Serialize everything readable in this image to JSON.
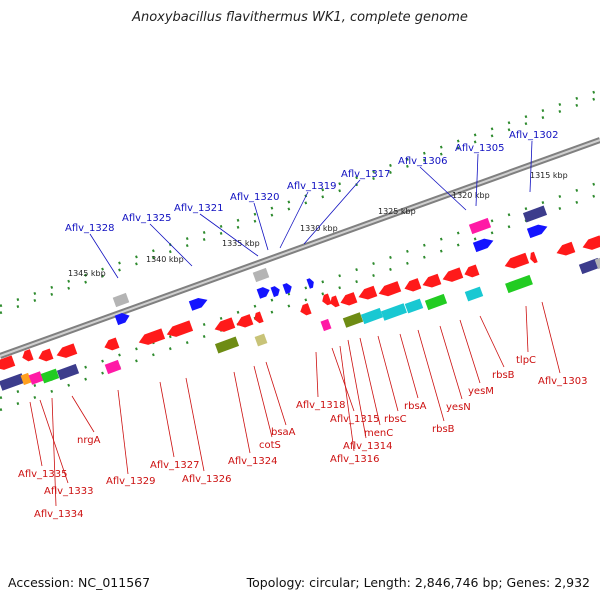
{
  "title": "Anoxybacillus flavithermus WK1, complete genome",
  "accession_label": "Accession: NC_011567",
  "topology_label": "Topology: circular; Length: 2,846,746 bp; Genes: 2,932",
  "colors": {
    "backbone": "#808080",
    "ticks": "#2e8b2e",
    "red": "#ff1a1a",
    "blue": "#1414ff",
    "magenta": "#ff1aa6",
    "cyan": "#19c8d2",
    "green": "#22cc22",
    "olive": "#6e8c14",
    "navy": "#3c3c8c",
    "gray": "#b4b4b4",
    "khaki": "#c8c378",
    "orange": "#ffa01e",
    "label_blue": "#1010c0",
    "label_red": "#cc1010",
    "label_kbp": "#222222"
  },
  "kbp_labels": [
    "1345 kbp",
    "1340 kbp",
    "1335 kbp",
    "1330 kbp",
    "1325 kbp",
    "1320 kbp",
    "1315 kbp"
  ],
  "top_gene_labels": [
    "Aflv_1328",
    "Aflv_1325",
    "Aflv_1321",
    "Aflv_1320",
    "Aflv_1319",
    "Aflv_1317",
    "Aflv_1306",
    "Aflv_1305",
    "Aflv_1302"
  ],
  "bottom_gene_labels": [
    "Aflv_1335",
    "Aflv_1333",
    "Aflv_1334",
    "nrgA",
    "Aflv_1329",
    "Aflv_1327",
    "Aflv_1326",
    "Aflv_1324",
    "cotS",
    "bsaA",
    "Aflv_1318",
    "Aflv_1315",
    "Aflv_1316",
    "Aflv_1314",
    "menC",
    "rbsC",
    "rbsA",
    "rbsB",
    "yesN",
    "yesM",
    "rbsB",
    "tlpC",
    "Aflv_1303"
  ]
}
